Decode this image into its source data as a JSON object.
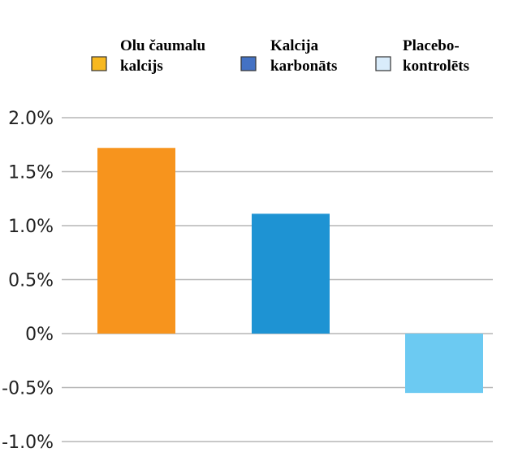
{
  "chart_data": {
    "type": "bar",
    "categories": [
      "Olu čaumalu kalcijs",
      "Kalcija karbonāts",
      "Placebo-kontrolēts"
    ],
    "values": [
      1.72,
      1.11,
      -0.55
    ],
    "colors": [
      "#f7941d",
      "#1e93d3",
      "#6ccaf2"
    ],
    "ylim": [
      -1.0,
      2.0
    ],
    "yticks": [
      2.0,
      1.5,
      1.0,
      0.5,
      0.0,
      -0.5,
      -1.0
    ],
    "ytick_labels": [
      "2.0%",
      "1.5%",
      "1.0%",
      "0.5%",
      "0%",
      "-0.5%",
      "-1.0%"
    ],
    "grid": true,
    "legend": {
      "position": "top",
      "entries": [
        {
          "lines": [
            "Olu čaumalu",
            "kalcijs"
          ],
          "color": "#f7b820"
        },
        {
          "lines": [
            "Kalcija",
            "karbonāts"
          ],
          "color": "#4472c4"
        },
        {
          "lines": [
            "Placebo-",
            "kontrolēts"
          ],
          "color": "#d9ecfb"
        }
      ]
    }
  }
}
